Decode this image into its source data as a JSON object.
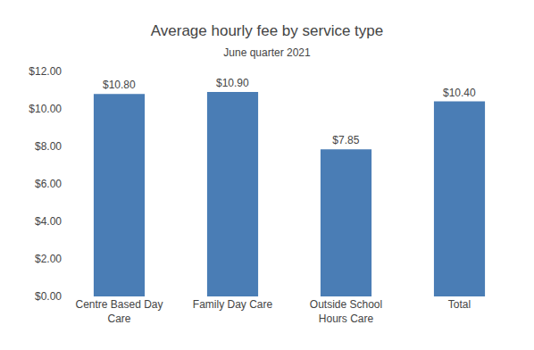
{
  "chart_data": {
    "type": "bar",
    "title": "Average hourly fee by service type",
    "subtitle": "June quarter 2021",
    "categories": [
      "Centre Based Day\nCare",
      "Family Day Care",
      "Outside School\nHours Care",
      "Total"
    ],
    "values": [
      10.8,
      10.9,
      7.85,
      10.4
    ],
    "value_labels": [
      "$10.80",
      "$10.90",
      "$7.85",
      "$10.40"
    ],
    "data_labels": true,
    "color": "#4a7db5",
    "ylim": [
      0,
      12
    ],
    "yticks": [
      {
        "value": 0,
        "label": "$0.00"
      },
      {
        "value": 2,
        "label": "$2.00"
      },
      {
        "value": 4,
        "label": "$4.00"
      },
      {
        "value": 6,
        "label": "$6.00"
      },
      {
        "value": 8,
        "label": "$8.00"
      },
      {
        "value": 10,
        "label": "$10.00"
      },
      {
        "value": 12,
        "label": "$12.00"
      }
    ],
    "grid": false
  }
}
